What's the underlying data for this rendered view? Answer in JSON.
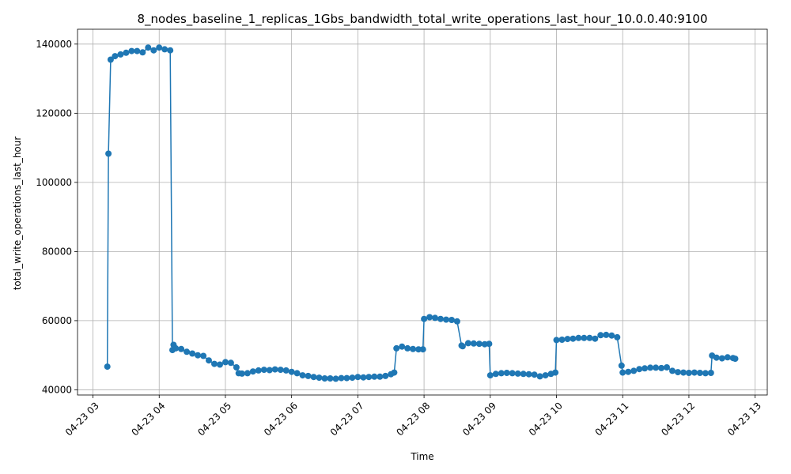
{
  "chart_data": {
    "type": "line",
    "title": "8_nodes_baseline_1_replicas_1Gbs_bandwidth_total_write_operations_last_hour_10.0.0.40:9100",
    "xlabel": "Time",
    "ylabel": "total_write_operations_last_hour",
    "x_tick_labels": [
      "04-23 03",
      "04-23 04",
      "04-23 05",
      "04-23 06",
      "04-23 07",
      "04-23 08",
      "04-23 09",
      "04-23 10",
      "04-23 11",
      "04-23 12",
      "04-23 13"
    ],
    "y_tick_labels": [
      "40000",
      "60000",
      "80000",
      "100000",
      "120000",
      "140000"
    ],
    "y_ticks": [
      40000,
      60000,
      80000,
      100000,
      120000,
      140000
    ],
    "xlim": [
      "2024-04-23 02:46",
      "2024-04-23 13:11"
    ],
    "ylim": [
      38500,
      144300
    ],
    "grid": true,
    "color": "#1f77b4",
    "marker": "circle",
    "series": [
      {
        "x": [
          "2024-04-23 03:13",
          "2024-04-23 03:14",
          "2024-04-23 03:16",
          "2024-04-23 03:20",
          "2024-04-23 03:25",
          "2024-04-23 03:30",
          "2024-04-23 03:35",
          "2024-04-23 03:40",
          "2024-04-23 03:45",
          "2024-04-23 03:50",
          "2024-04-23 03:55",
          "2024-04-23 04:00",
          "2024-04-23 04:05",
          "2024-04-23 04:10",
          "2024-04-23 04:12",
          "2024-04-23 04:13",
          "2024-04-23 04:15",
          "2024-04-23 04:20",
          "2024-04-23 04:25",
          "2024-04-23 04:30",
          "2024-04-23 04:35",
          "2024-04-23 04:40",
          "2024-04-23 04:45",
          "2024-04-23 04:50",
          "2024-04-23 04:55",
          "2024-04-23 05:00",
          "2024-04-23 05:05",
          "2024-04-23 05:10",
          "2024-04-23 05:12",
          "2024-04-23 05:15",
          "2024-04-23 05:20",
          "2024-04-23 05:25",
          "2024-04-23 05:30",
          "2024-04-23 05:35",
          "2024-04-23 05:40",
          "2024-04-23 05:45",
          "2024-04-23 05:50",
          "2024-04-23 05:55",
          "2024-04-23 06:00",
          "2024-04-23 06:05",
          "2024-04-23 06:10",
          "2024-04-23 06:15",
          "2024-04-23 06:20",
          "2024-04-23 06:25",
          "2024-04-23 06:30",
          "2024-04-23 06:35",
          "2024-04-23 06:40",
          "2024-04-23 06:45",
          "2024-04-23 06:50",
          "2024-04-23 06:55",
          "2024-04-23 07:00",
          "2024-04-23 07:05",
          "2024-04-23 07:10",
          "2024-04-23 07:15",
          "2024-04-23 07:20",
          "2024-04-23 07:25",
          "2024-04-23 07:30",
          "2024-04-23 07:33",
          "2024-04-23 07:35",
          "2024-04-23 07:40",
          "2024-04-23 07:45",
          "2024-04-23 07:50",
          "2024-04-23 07:55",
          "2024-04-23 07:59",
          "2024-04-23 08:00",
          "2024-04-23 08:05",
          "2024-04-23 08:10",
          "2024-04-23 08:15",
          "2024-04-23 08:20",
          "2024-04-23 08:25",
          "2024-04-23 08:30",
          "2024-04-23 08:34",
          "2024-04-23 08:35",
          "2024-04-23 08:40",
          "2024-04-23 08:45",
          "2024-04-23 08:50",
          "2024-04-23 08:55",
          "2024-04-23 08:59",
          "2024-04-23 09:00",
          "2024-04-23 09:05",
          "2024-04-23 09:10",
          "2024-04-23 09:15",
          "2024-04-23 09:20",
          "2024-04-23 09:25",
          "2024-04-23 09:30",
          "2024-04-23 09:35",
          "2024-04-23 09:40",
          "2024-04-23 09:45",
          "2024-04-23 09:50",
          "2024-04-23 09:55",
          "2024-04-23 09:59",
          "2024-04-23 10:00",
          "2024-04-23 10:05",
          "2024-04-23 10:10",
          "2024-04-23 10:15",
          "2024-04-23 10:20",
          "2024-04-23 10:25",
          "2024-04-23 10:30",
          "2024-04-23 10:35",
          "2024-04-23 10:40",
          "2024-04-23 10:45",
          "2024-04-23 10:50",
          "2024-04-23 10:55",
          "2024-04-23 10:59",
          "2024-04-23 11:00",
          "2024-04-23 11:05",
          "2024-04-23 11:10",
          "2024-04-23 11:15",
          "2024-04-23 11:20",
          "2024-04-23 11:25",
          "2024-04-23 11:30",
          "2024-04-23 11:35",
          "2024-04-23 11:40",
          "2024-04-23 11:45",
          "2024-04-23 11:50",
          "2024-04-23 11:55",
          "2024-04-23 12:00",
          "2024-04-23 12:05",
          "2024-04-23 12:10",
          "2024-04-23 12:15",
          "2024-04-23 12:20",
          "2024-04-23 12:21",
          "2024-04-23 12:25",
          "2024-04-23 12:30",
          "2024-04-23 12:35",
          "2024-04-23 12:40",
          "2024-04-23 12:42"
        ],
        "y": [
          46700,
          108300,
          135500,
          136500,
          137000,
          137500,
          138000,
          138000,
          137600,
          139000,
          138200,
          139000,
          138500,
          138200,
          51500,
          53000,
          52000,
          51800,
          51000,
          50500,
          50000,
          49800,
          48500,
          47500,
          47300,
          48000,
          47800,
          46500,
          44800,
          44700,
          44800,
          45300,
          45600,
          45800,
          45700,
          45900,
          45800,
          45600,
          45200,
          44800,
          44200,
          44000,
          43700,
          43500,
          43300,
          43300,
          43200,
          43400,
          43400,
          43500,
          43700,
          43600,
          43700,
          43800,
          43800,
          44000,
          44500,
          45000,
          52000,
          52500,
          52000,
          51800,
          51700,
          51700,
          60500,
          61000,
          60800,
          60500,
          60300,
          60200,
          59800,
          52800,
          52600,
          53500,
          53400,
          53300,
          53200,
          53300,
          44200,
          44600,
          44800,
          44900,
          44800,
          44700,
          44600,
          44500,
          44400,
          43900,
          44200,
          44600,
          45000,
          54400,
          54500,
          54700,
          54800,
          55000,
          55000,
          55000,
          54800,
          55800,
          55900,
          55700,
          55200,
          47000,
          45000,
          45200,
          45500,
          46000,
          46200,
          46400,
          46400,
          46300,
          46500,
          45500,
          45100,
          45000,
          44900,
          45000,
          44900,
          44800,
          44900,
          49900,
          49300,
          49100,
          49400,
          49200,
          49000
        ]
      }
    ]
  }
}
